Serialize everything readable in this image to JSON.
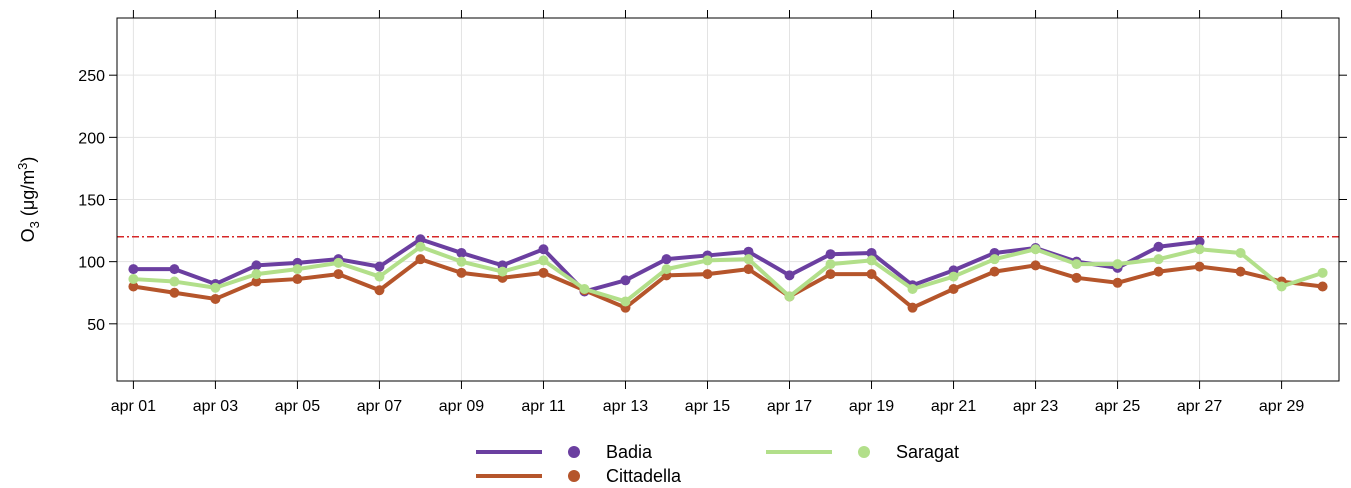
{
  "chart_data": {
    "type": "line",
    "title": "",
    "xlabel": "",
    "ylabel": "O",
    "ylabel_sub": "3",
    "ylabel_unit_open": " (μg/m",
    "ylabel_unit_sup": "3",
    "ylabel_unit_close": ")",
    "days": [
      1,
      2,
      3,
      4,
      5,
      6,
      7,
      8,
      9,
      10,
      11,
      12,
      13,
      14,
      15,
      16,
      17,
      18,
      19,
      20,
      21,
      22,
      23,
      24,
      25,
      26,
      27,
      28,
      29,
      30
    ],
    "x_tick_days": [
      1,
      3,
      5,
      7,
      9,
      11,
      13,
      15,
      17,
      19,
      21,
      23,
      25,
      27,
      29
    ],
    "x_tick_labels": [
      "apr 01",
      "apr 03",
      "apr 05",
      "apr 07",
      "apr 09",
      "apr 11",
      "apr 13",
      "apr 15",
      "apr 17",
      "apr 19",
      "apr 21",
      "apr 23",
      "apr 25",
      "apr 27",
      "apr 29"
    ],
    "xlim": [
      0.6,
      30.4
    ],
    "ylim": [
      4,
      296
    ],
    "y_ticks": [
      50,
      100,
      150,
      200,
      250
    ],
    "y_tick_labels": [
      "50",
      "100",
      "150",
      "200",
      "250"
    ],
    "grid": true,
    "legend_position": "bottom",
    "threshold": {
      "value": 120,
      "color": "#d62728",
      "style": "dash-dot"
    },
    "series": [
      {
        "name": "Badia",
        "color": "#6b3fa0",
        "values": [
          94,
          94,
          82,
          97,
          99,
          102,
          96,
          118,
          107,
          97,
          110,
          76,
          85,
          102,
          105,
          108,
          89,
          106,
          107,
          81,
          93,
          107,
          111,
          100,
          95,
          112,
          116,
          null,
          null,
          null
        ]
      },
      {
        "name": "Cittadella",
        "color": "#b5552b",
        "values": [
          80,
          75,
          70,
          84,
          86,
          90,
          77,
          102,
          91,
          87,
          91,
          77,
          63,
          89,
          90,
          94,
          72,
          90,
          90,
          63,
          78,
          92,
          97,
          87,
          83,
          92,
          96,
          92,
          84,
          80
        ]
      },
      {
        "name": "Saragat",
        "color": "#b2df8a",
        "values": [
          86,
          84,
          79,
          90,
          94,
          99,
          88,
          112,
          100,
          92,
          101,
          78,
          68,
          94,
          101,
          102,
          72,
          98,
          101,
          78,
          88,
          102,
          110,
          98,
          98,
          102,
          110,
          107,
          80,
          91
        ]
      }
    ]
  }
}
